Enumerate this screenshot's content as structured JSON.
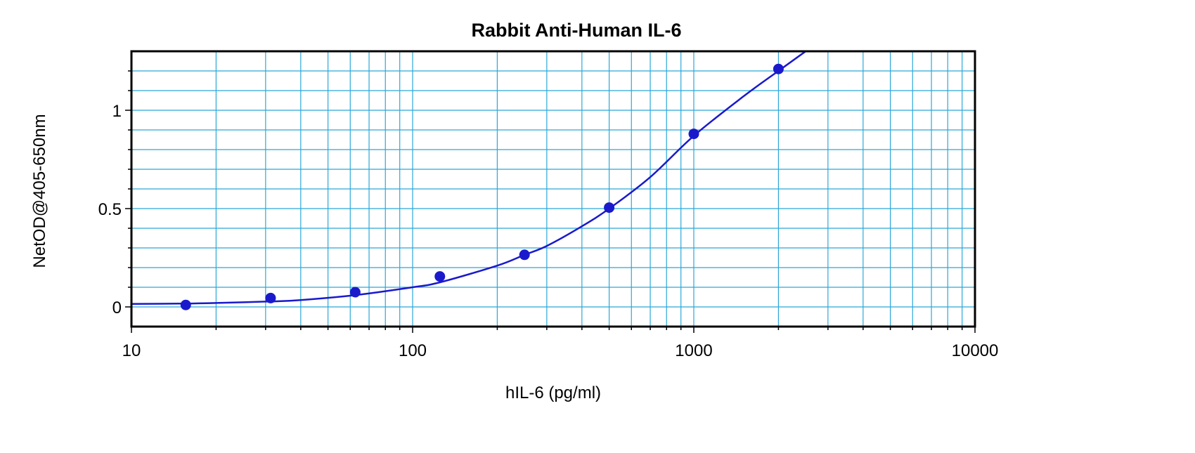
{
  "chart_data": {
    "type": "scatter",
    "title": "Rabbit Anti-Human IL-6",
    "xlabel": "hIL-6 (pg/ml)",
    "ylabel": "NetOD@405-650nm",
    "x_scale": "log",
    "xlim": [
      10,
      10000
    ],
    "ylim": [
      -0.1,
      1.3
    ],
    "x_ticks": [
      {
        "value": 10,
        "label": "10"
      },
      {
        "value": 100,
        "label": "100"
      },
      {
        "value": 1000,
        "label": "1000"
      },
      {
        "value": 10000,
        "label": "10000"
      }
    ],
    "y_ticks": [
      {
        "value": 0,
        "label": "0"
      },
      {
        "value": 0.5,
        "label": "0.5"
      },
      {
        "value": 1,
        "label": "1"
      }
    ],
    "grid": true,
    "legend": "none",
    "series": [
      {
        "kind": "points",
        "x": [
          15.6,
          31.25,
          62.5,
          125,
          250,
          500,
          1000,
          2000
        ],
        "y": [
          0.01,
          0.045,
          0.075,
          0.155,
          0.265,
          0.505,
          0.88,
          1.21
        ]
      },
      {
        "kind": "fit-line",
        "x": [
          10,
          15.6,
          20,
          31.25,
          40,
          62.5,
          100,
          125,
          200,
          250,
          300,
          400,
          500,
          700,
          1000,
          1500,
          2000,
          2500
        ],
        "y": [
          0.015,
          0.017,
          0.02,
          0.028,
          0.035,
          0.06,
          0.1,
          0.125,
          0.21,
          0.265,
          0.31,
          0.41,
          0.5,
          0.66,
          0.87,
          1.07,
          1.2,
          1.3
        ]
      }
    ],
    "colors": {
      "data": "#1a1acc",
      "grid": "#2aa8d8",
      "frame": "#000000"
    }
  }
}
